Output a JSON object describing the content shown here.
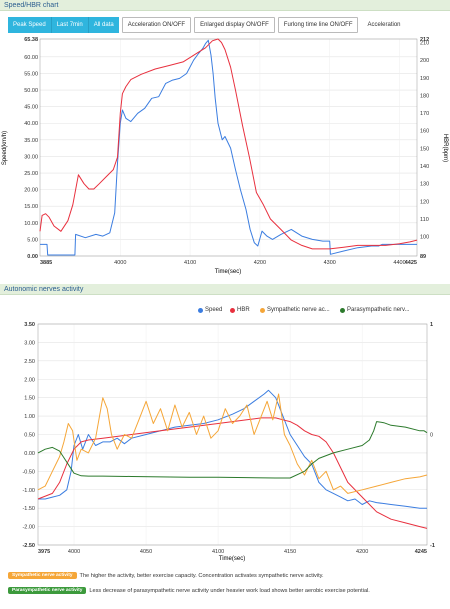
{
  "panel1": {
    "title": "Speed/HBR chart"
  },
  "toolbar": {
    "peak_speed": "Peak Speed",
    "last_7min": "Last 7min",
    "all_data": "All data",
    "accel": "Acceleration ON/OFF",
    "enlarged": "Enlarged display ON/OFF",
    "furlong": "Furlong time line ON/OFF",
    "acceleration": "Acceleration"
  },
  "panel2": {
    "title": "Autonomic nerves activity"
  },
  "colors": {
    "speed": "#3b7de0",
    "hbr": "#e8303e",
    "sympathetic": "#f5a638",
    "parasympathetic": "#2c7a2c"
  },
  "legend2": {
    "speed": "Speed",
    "hbr": "HBR",
    "sympathetic": "Sympathetic nerve ac...",
    "parasympathetic": "Parasympathetic nerv..."
  },
  "notes": {
    "sym_badge": "Sympathetic nerve activity",
    "sym_text": "The higher the activity, better exercise capacity. Concentration activates sympathetic nerve activity.",
    "para_badge": "Parasympathetic nerve activity",
    "para_text": "Less decrease of parasympathetic nerve activity under heavier work load shows better aerobic exercise potential."
  },
  "chart_data": [
    {
      "type": "line",
      "xlabel": "Time(sec)",
      "ylabel": "Speed(km/h)",
      "y2label": "HBR(bpm)",
      "xlim": [
        3885,
        4425
      ],
      "ylim": [
        0,
        65.38
      ],
      "y2lim": [
        89,
        212
      ],
      "x_ticks": [
        "3885",
        "4000",
        "4100",
        "4200",
        "4300",
        "4400",
        "4425"
      ],
      "y_ticks": [
        "65.38",
        "60.00",
        "55.00",
        "50.00",
        "45.00",
        "40.00",
        "35.00",
        "30.00",
        "25.00",
        "20.00",
        "15.00",
        "10.00",
        "5.00",
        "0.00"
      ],
      "y2_ticks": [
        "212",
        "210",
        "200",
        "190",
        "180",
        "170",
        "160",
        "150",
        "140",
        "130",
        "120",
        "110",
        "100",
        "89"
      ],
      "series": [
        {
          "name": "Speed",
          "x": [
            3885,
            3895,
            3896,
            3910,
            3925,
            3935,
            3936,
            3950,
            3965,
            3975,
            3985,
            3992,
            3996,
            4000,
            4003,
            4008,
            4015,
            4025,
            4035,
            4045,
            4055,
            4065,
            4075,
            4085,
            4095,
            4105,
            4112,
            4118,
            4122,
            4126,
            4130,
            4133,
            4136,
            4140,
            4146,
            4150,
            4158,
            4165,
            4172,
            4180,
            4186,
            4192,
            4197,
            4203,
            4210,
            4218,
            4230,
            4245,
            4260,
            4275,
            4290,
            4300,
            4301,
            4320,
            4340,
            4360,
            4370,
            4375,
            4400,
            4425
          ],
          "values": [
            3.5,
            3.5,
            0.3,
            0.3,
            0.3,
            0.3,
            6.5,
            5.5,
            6.5,
            6.0,
            7.0,
            13.0,
            28.0,
            40.0,
            44.0,
            41.5,
            40.5,
            43.0,
            44.5,
            47.5,
            48.0,
            52.0,
            53.0,
            53.5,
            55.0,
            59.0,
            61.0,
            62.5,
            64.0,
            65.0,
            60.5,
            55.0,
            47.5,
            40.0,
            35.0,
            36.0,
            32.5,
            26.0,
            20.0,
            14.0,
            8.0,
            4.0,
            3.0,
            7.5,
            6.0,
            5.0,
            6.5,
            8.0,
            6.0,
            5.0,
            4.5,
            4.5,
            0.5,
            1.5,
            2.5,
            3.0,
            3.0,
            3.5,
            3.5,
            3.5
          ]
        },
        {
          "name": "HBR",
          "x": [
            3885,
            3888,
            3893,
            3898,
            3905,
            3915,
            3925,
            3932,
            3940,
            3948,
            3955,
            3962,
            3970,
            3980,
            3990,
            3996,
            4000,
            4003,
            4008,
            4015,
            4030,
            4050,
            4070,
            4090,
            4110,
            4122,
            4132,
            4140,
            4145,
            4150,
            4158,
            4165,
            4175,
            4185,
            4195,
            4205,
            4215,
            4230,
            4245,
            4260,
            4275,
            4285,
            4300,
            4320,
            4340,
            4360,
            4380,
            4400,
            4415,
            4425
          ],
          "values": [
            103,
            112,
            113,
            111,
            106,
            103,
            109,
            118,
            135,
            130,
            127,
            127,
            130,
            134,
            138,
            145,
            170,
            181,
            185,
            189,
            192,
            195,
            197,
            199,
            204,
            207,
            211,
            212,
            210,
            206,
            196,
            183,
            163,
            145,
            125,
            118,
            110,
            104,
            98,
            95,
            93,
            93,
            93,
            94,
            95,
            95,
            95,
            96,
            97,
            98
          ]
        }
      ]
    },
    {
      "type": "line",
      "xlabel": "Time(sec)",
      "xlim": [
        3975,
        4245
      ],
      "ylim": [
        -2.5,
        3.5
      ],
      "y2lim": [
        -1,
        1
      ],
      "x_ticks": [
        "3975",
        "4000",
        "4050",
        "4100",
        "4150",
        "4200",
        "4245"
      ],
      "y_ticks": [
        "3.50",
        "3.00",
        "2.50",
        "2.00",
        "1.50",
        "1.00",
        "0.50",
        "0.00",
        "-0.50",
        "-1.00",
        "-1.50",
        "-2.00",
        "-2.50"
      ],
      "y2_ticks": [
        "1",
        "0",
        "-1"
      ],
      "series": [
        {
          "name": "Speed",
          "x": [
            3975,
            3980,
            3985,
            3990,
            3995,
            3998,
            4000,
            4003,
            4006,
            4010,
            4015,
            4020,
            4025,
            4030,
            4035,
            4040,
            4050,
            4060,
            4070,
            4080,
            4090,
            4100,
            4110,
            4118,
            4125,
            4132,
            4135,
            4140,
            4145,
            4150,
            4155,
            4160,
            4165,
            4170,
            4175,
            4180,
            4185,
            4190,
            4195,
            4200,
            4205,
            4210,
            4220,
            4230,
            4240,
            4245
          ],
          "values": [
            -1.25,
            -1.25,
            -1.2,
            -1.15,
            -1.0,
            -0.5,
            0.2,
            0.5,
            0.1,
            0.5,
            0.2,
            0.3,
            0.3,
            0.4,
            0.25,
            0.4,
            0.5,
            0.6,
            0.7,
            0.75,
            0.8,
            0.9,
            1.05,
            1.2,
            1.4,
            1.6,
            1.7,
            1.5,
            1.0,
            0.5,
            0.2,
            -0.1,
            -0.3,
            -0.8,
            -1.0,
            -1.1,
            -1.2,
            -1.3,
            -1.25,
            -1.4,
            -1.3,
            -1.35,
            -1.4,
            -1.45,
            -1.5,
            -1.5
          ]
        },
        {
          "name": "HBR",
          "x": [
            3975,
            3985,
            3990,
            3995,
            4000,
            4005,
            4010,
            4020,
            4040,
            4060,
            4080,
            4100,
            4120,
            4130,
            4140,
            4145,
            4150,
            4155,
            4160,
            4165,
            4170,
            4175,
            4180,
            4190,
            4200,
            4210,
            4220,
            4230,
            4240,
            4245
          ],
          "values": [
            -1.25,
            -1.1,
            -0.8,
            -0.3,
            0.1,
            0.3,
            0.35,
            0.4,
            0.5,
            0.6,
            0.7,
            0.8,
            0.9,
            0.95,
            0.95,
            0.9,
            0.85,
            0.75,
            0.6,
            0.5,
            0.45,
            0.3,
            0.0,
            -0.8,
            -1.2,
            -1.6,
            -1.8,
            -1.9,
            -2.0,
            -2.05
          ]
        },
        {
          "name": "Sympathetic nerve ac...",
          "x": [
            3975,
            3980,
            3985,
            3990,
            3993,
            3996,
            3999,
            4002,
            4005,
            4010,
            4015,
            4020,
            4023,
            4026,
            4030,
            4035,
            4040,
            4045,
            4050,
            4055,
            4060,
            4065,
            4070,
            4075,
            4080,
            4085,
            4090,
            4095,
            4100,
            4105,
            4110,
            4115,
            4120,
            4125,
            4130,
            4134,
            4138,
            4142,
            4146,
            4150,
            4155,
            4160,
            4165,
            4170,
            4175,
            4180,
            4185,
            4190,
            4200,
            4210,
            4220,
            4230,
            4240,
            4245
          ],
          "values": [
            -1.0,
            -0.9,
            -0.5,
            -0.1,
            0.3,
            0.8,
            0.6,
            -0.2,
            0.1,
            0.0,
            0.4,
            1.5,
            1.2,
            0.5,
            0.1,
            0.5,
            0.4,
            0.9,
            1.4,
            0.8,
            1.2,
            0.6,
            1.3,
            0.7,
            1.1,
            0.5,
            1.0,
            0.4,
            0.6,
            1.2,
            0.8,
            1.0,
            1.3,
            0.5,
            1.0,
            1.4,
            0.9,
            1.6,
            0.5,
            0.2,
            -0.3,
            -0.6,
            -0.2,
            -0.7,
            -0.5,
            -1.0,
            -0.9,
            -1.1,
            -1.0,
            -0.9,
            -0.8,
            -0.7,
            -0.65,
            -0.6
          ]
        },
        {
          "name": "Parasympathetic nerv...",
          "x": [
            3975,
            3980,
            3985,
            3990,
            3995,
            4000,
            4005,
            4010,
            4020,
            4040,
            4060,
            4080,
            4100,
            4120,
            4140,
            4150,
            4160,
            4165,
            4170,
            4180,
            4190,
            4200,
            4205,
            4208,
            4210,
            4215,
            4220,
            4230,
            4240,
            4243,
            4245
          ],
          "values": [
            0.0,
            0.1,
            0.15,
            0.05,
            -0.25,
            -0.55,
            -0.62,
            -0.63,
            -0.63,
            -0.64,
            -0.65,
            -0.66,
            -0.66,
            -0.67,
            -0.68,
            -0.68,
            -0.5,
            -0.3,
            -0.15,
            0.0,
            0.1,
            0.2,
            0.35,
            0.6,
            0.85,
            0.82,
            0.75,
            0.7,
            0.6,
            0.6,
            0.55
          ]
        }
      ]
    }
  ]
}
